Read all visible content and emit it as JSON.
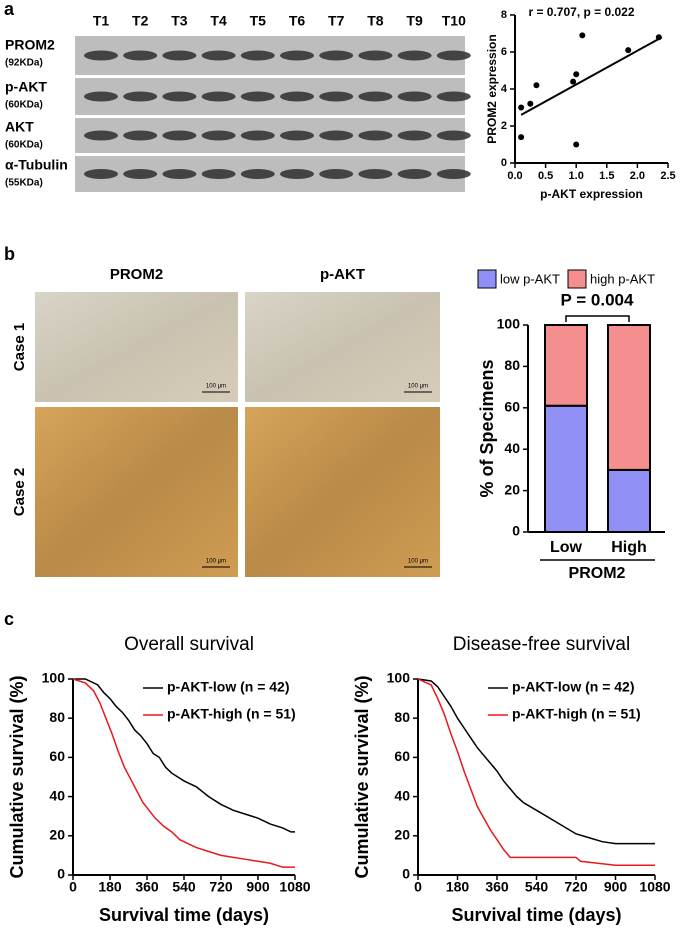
{
  "panel_labels": [
    "a",
    "b",
    "c"
  ],
  "blot": {
    "lanes": [
      "T1",
      "T2",
      "T3",
      "T4",
      "T5",
      "T6",
      "T7",
      "T8",
      "T9",
      "T10"
    ],
    "rows": [
      {
        "name": "PROM2",
        "size": "(92KDa)"
      },
      {
        "name": "p-AKT",
        "size": "(60KDa)"
      },
      {
        "name": "AKT",
        "size": "(60KDa)"
      },
      {
        "name": "α-Tubulin",
        "size": "(55KDa)"
      }
    ]
  },
  "ihc": {
    "columns": [
      "PROM2",
      "p-AKT"
    ],
    "rows": [
      "Case 1",
      "Case 2"
    ],
    "scale_bar": "100 μm"
  },
  "chart_data": [
    {
      "type": "scatter",
      "annotation": "r = 0.707, p = 0.022",
      "x_label": "p-AKT expression",
      "y_label": "PROM2 expression",
      "x": [
        0.1,
        0.1,
        0.25,
        0.35,
        0.95,
        1.0,
        1.0,
        1.1,
        1.85,
        2.35
      ],
      "values": [
        1.4,
        3.0,
        3.2,
        4.2,
        4.4,
        4.8,
        1.0,
        6.9,
        6.1,
        6.8
      ],
      "color": "#000000",
      "fit_line": {
        "x": [
          0.1,
          2.4
        ],
        "values": [
          2.6,
          6.8
        ]
      },
      "xlim": [
        0,
        2.5
      ],
      "xticks": [
        {
          "value": 0,
          "label": "0.0"
        },
        {
          "value": 0.5,
          "label": "0.5"
        },
        {
          "value": 1,
          "label": "1.0"
        },
        {
          "value": 1.5,
          "label": "1.5"
        },
        {
          "value": 2,
          "label": "2.0"
        },
        {
          "value": 2.5,
          "label": "2.5"
        }
      ],
      "ylim": [
        0,
        8
      ],
      "yticks": [
        0,
        2,
        4,
        6,
        8
      ]
    },
    {
      "type": "stacked_bar",
      "annotation": "P = 0.004",
      "categories": [
        "Low",
        "High"
      ],
      "x_label": "PROM2",
      "y_label": "% of Specimens",
      "series": [
        {
          "name": "low p-AKT",
          "color": "#8f8ff5",
          "values": [
            61,
            30
          ]
        },
        {
          "name": "high p-AKT",
          "color": "#f58f8f",
          "values": [
            39,
            70
          ]
        }
      ],
      "ylim": [
        0,
        100
      ],
      "yticks": [
        0,
        20,
        40,
        60,
        80,
        100
      ]
    },
    {
      "type": "line",
      "title": "Overall survival",
      "x_label": "Survival time (days)",
      "y_label": "Cumulative survival (%)",
      "series": [
        {
          "name": "p-AKT-low (n = 42)",
          "color": "#000000",
          "x": [
            0,
            60,
            120,
            150,
            180,
            210,
            240,
            270,
            300,
            330,
            360,
            390,
            420,
            450,
            480,
            510,
            540,
            600,
            660,
            720,
            780,
            840,
            900,
            960,
            1020,
            1060,
            1080
          ],
          "values": [
            100,
            100,
            97,
            93,
            90,
            86,
            83,
            79,
            74,
            71,
            67,
            62,
            60,
            55,
            52,
            50,
            48,
            45,
            40,
            36,
            33,
            31,
            29,
            26,
            24,
            22,
            22
          ]
        },
        {
          "name": "p-AKT-high (n = 51)",
          "color": "#e8191c",
          "x": [
            0,
            60,
            100,
            130,
            160,
            190,
            220,
            250,
            280,
            310,
            340,
            370,
            400,
            440,
            480,
            520,
            560,
            600,
            660,
            720,
            780,
            840,
            900,
            960,
            1020,
            1080
          ],
          "values": [
            100,
            98,
            94,
            88,
            80,
            72,
            63,
            55,
            49,
            43,
            37,
            33,
            29,
            25,
            22,
            18,
            16,
            14,
            12,
            10,
            9,
            8,
            7,
            6,
            4,
            4
          ]
        }
      ],
      "xlim": [
        0,
        1080
      ],
      "xticks": [
        0,
        180,
        360,
        540,
        720,
        900,
        1080
      ],
      "ylim": [
        0,
        100
      ],
      "yticks": [
        0,
        20,
        40,
        60,
        80,
        100
      ]
    },
    {
      "type": "line",
      "title": "Disease-free survival",
      "x_label": "Survival time (days)",
      "y_label": "Cumulative survival (%)",
      "series": [
        {
          "name": "p-AKT-low (n = 42)",
          "color": "#000000",
          "x": [
            0,
            60,
            90,
            120,
            150,
            180,
            210,
            240,
            270,
            300,
            330,
            360,
            390,
            420,
            450,
            480,
            540,
            600,
            660,
            720,
            780,
            840,
            900,
            1080
          ],
          "values": [
            100,
            99,
            96,
            91,
            86,
            80,
            75,
            70,
            65,
            61,
            57,
            53,
            48,
            44,
            40,
            37,
            33,
            29,
            25,
            21,
            19,
            17,
            16,
            16
          ]
        },
        {
          "name": "p-AKT-high (n = 51)",
          "color": "#e8191c",
          "x": [
            0,
            60,
            90,
            120,
            150,
            180,
            210,
            240,
            270,
            300,
            330,
            360,
            390,
            420,
            720,
            740,
            900,
            1080
          ],
          "values": [
            100,
            97,
            90,
            82,
            72,
            63,
            53,
            44,
            35,
            29,
            23,
            18,
            13,
            9,
            9,
            7,
            5,
            5
          ]
        }
      ],
      "xlim": [
        0,
        1080
      ],
      "xticks": [
        0,
        180,
        360,
        540,
        720,
        900,
        1080
      ],
      "ylim": [
        0,
        100
      ],
      "yticks": [
        0,
        20,
        40,
        60,
        80,
        100
      ]
    }
  ]
}
